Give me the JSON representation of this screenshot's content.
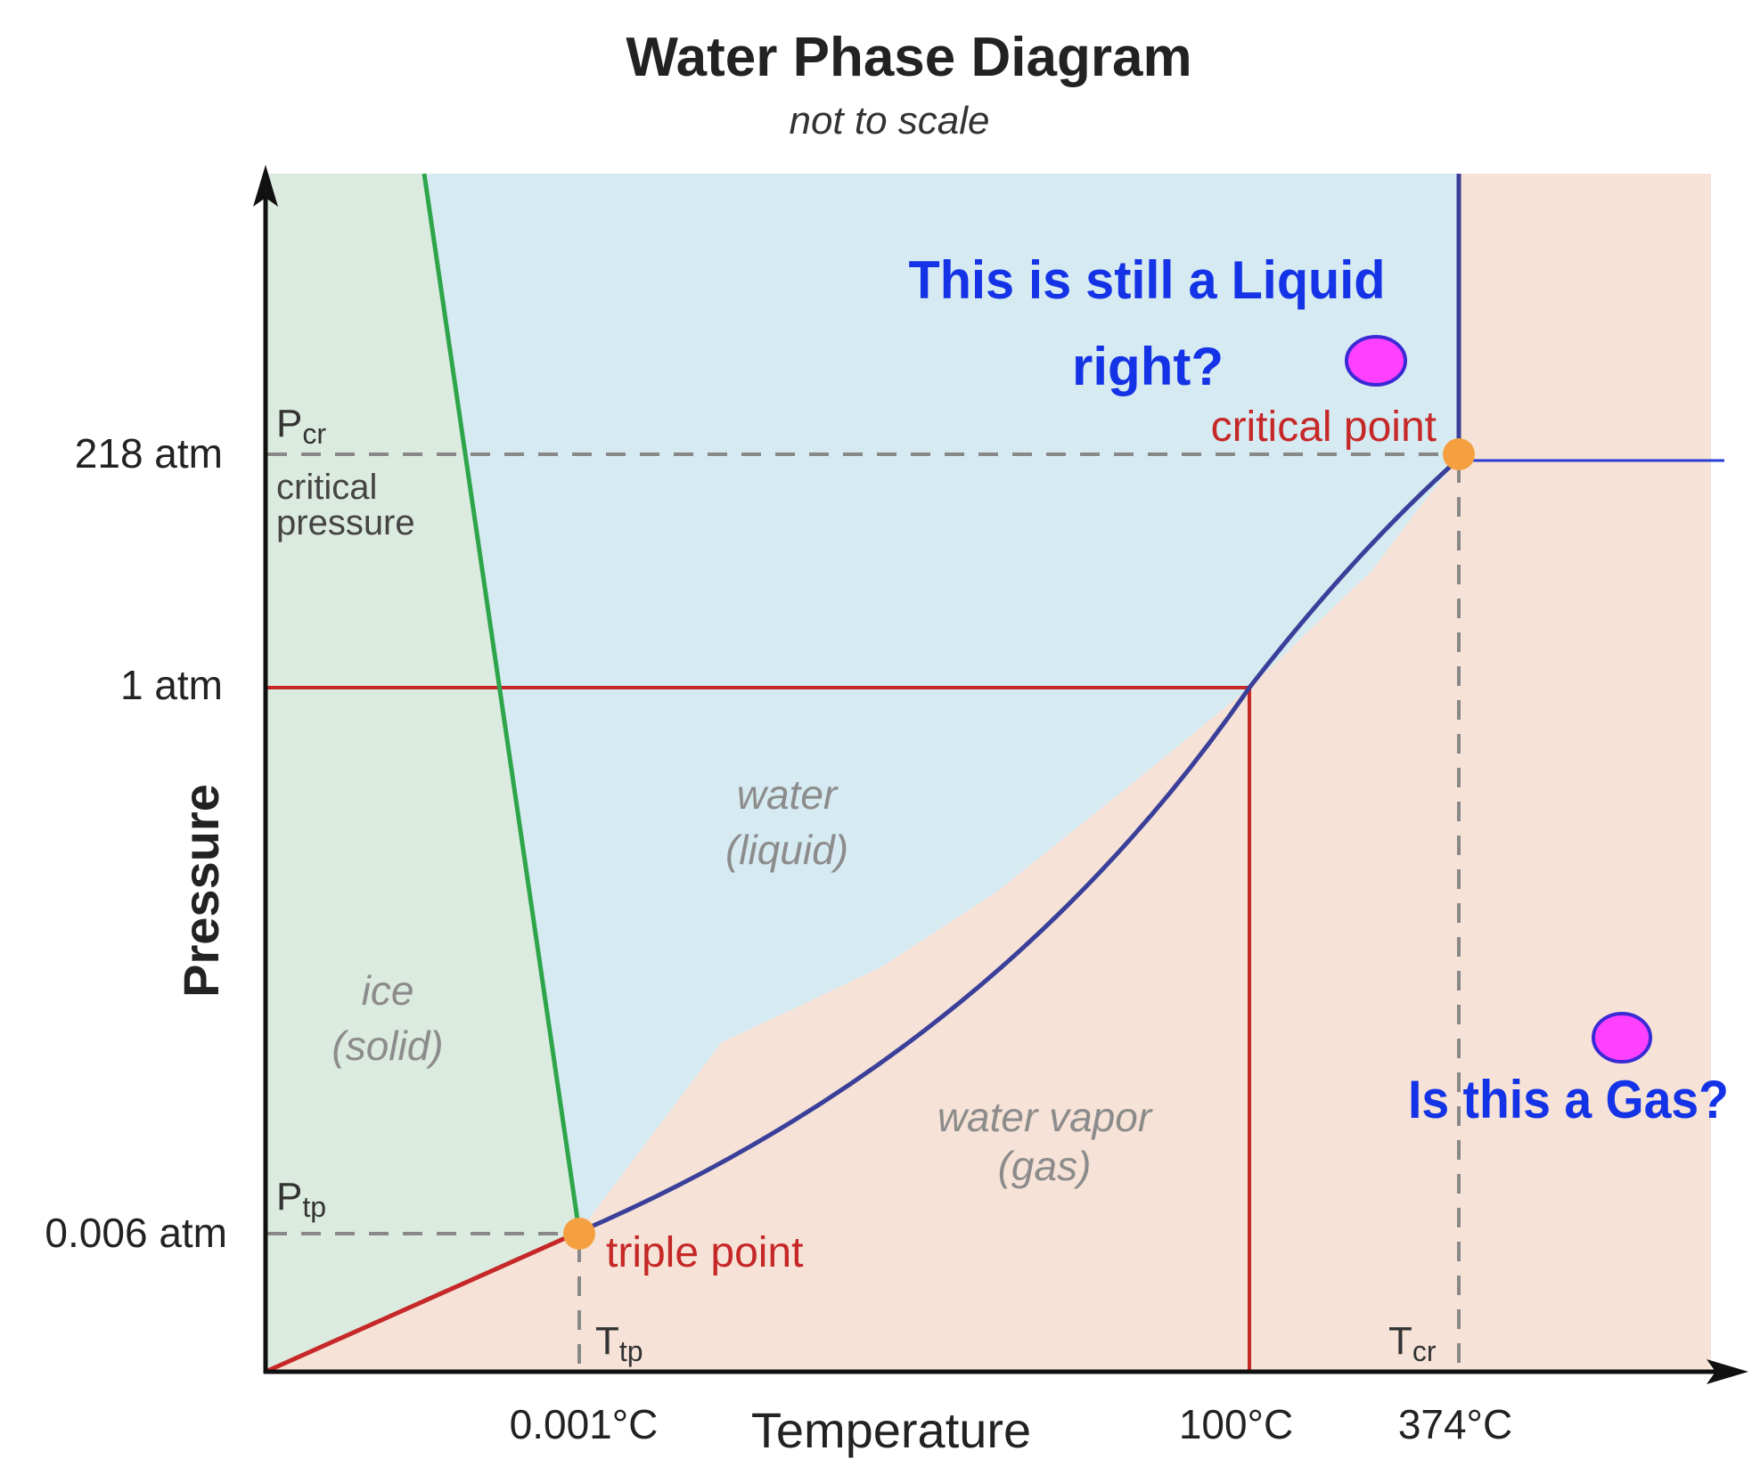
{
  "title": "Water Phase Diagram",
  "subtitle": "not to scale",
  "axes": {
    "x_label": "Temperature",
    "y_label": "Pressure"
  },
  "pressure_ticks": [
    "218 atm",
    "1 atm",
    "0.006 atm"
  ],
  "temperature_ticks": [
    "0.001°C",
    "100°C",
    "374°C"
  ],
  "markers": {
    "p_cr": "P",
    "p_cr_sub": "cr",
    "critical_pressure_line1": "critical",
    "critical_pressure_line2": "pressure",
    "p_tp": "P",
    "p_tp_sub": "tp",
    "t_tp": "T",
    "t_tp_sub": "tp",
    "t_cr": "T",
    "t_cr_sub": "cr"
  },
  "regions": {
    "ice_line1": "ice",
    "ice_line2": "(solid)",
    "water_line1": "water",
    "water_line2": "(liquid)",
    "vapor_line1": "water vapor",
    "vapor_line2": "(gas)"
  },
  "points": {
    "critical": "critical point",
    "triple": "triple point"
  },
  "annotations": {
    "liquid_question_line1": "This is still a Liquid",
    "liquid_question_line2": "right?",
    "gas_question": "Is this a Gas?"
  },
  "colors": {
    "solid_region": "#dcebdf",
    "liquid_region": "#d6eaf2",
    "gas_region": "#f6e2d6",
    "melting_curve": "#2ea54a",
    "boiling_curve": "#3a3f9a",
    "red_line": "#c62828",
    "point_orange": "#f5a040",
    "annotation_blue": "#1433e6",
    "annotation_marker": "#ff40ff"
  }
}
